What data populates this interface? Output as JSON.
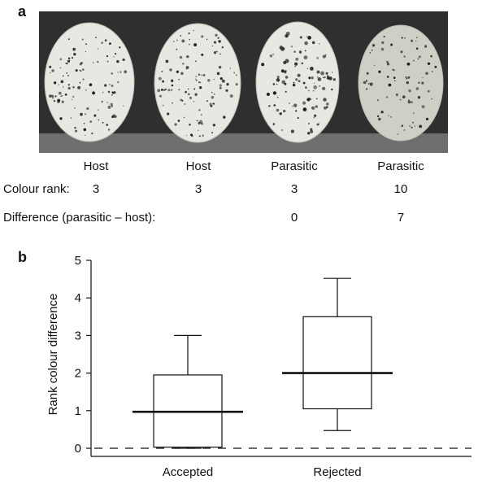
{
  "panel_a": {
    "letter": "a",
    "egg_labels": [
      "Host",
      "Host",
      "Parasitic",
      "Parasitic"
    ],
    "colour_rank_label": "Colour rank:",
    "colour_ranks": [
      "3",
      "3",
      "3",
      "10"
    ],
    "difference_label": "Difference (parasitic – host):",
    "differences": [
      "0",
      "7"
    ],
    "colors": {
      "background": "#2f2f2f",
      "shelf": "#6e6e6e",
      "egg": "#e8e8e2",
      "egg_dim": "#cfcfc6",
      "speckle": "#1e1e1e"
    }
  },
  "panel_b": {
    "letter": "b"
  },
  "chart_data": {
    "type": "box",
    "categories": [
      "Accepted",
      "Rejected"
    ],
    "ylabel": "Rank colour difference",
    "xlabel": "",
    "ylim": [
      0,
      5
    ],
    "yticks": [
      "0",
      "1",
      "2",
      "3",
      "4",
      "5"
    ],
    "boxes": [
      {
        "name": "Accepted",
        "whisker_low": 0,
        "q1": 0.03,
        "median": 0.97,
        "q3": 1.95,
        "whisker_high": 3.0
      },
      {
        "name": "Rejected",
        "whisker_low": 0.47,
        "q1": 1.05,
        "median": 2.0,
        "q3": 3.5,
        "whisker_high": 4.52
      }
    ],
    "reference_line": {
      "y": 0,
      "style": "dashed"
    },
    "grid": false
  }
}
